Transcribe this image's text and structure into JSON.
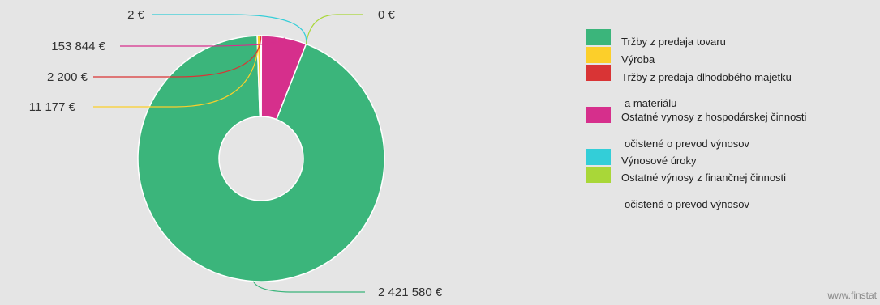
{
  "chart_data": {
    "type": "pie",
    "categories": [
      "Tržby z predaja tovaru",
      "Výroba",
      "Tržby z predaja dlhodobého majetku a materiálu",
      "Ostatné vynosy z hospodárskej činnosti očistené o prevod výnosov",
      "Výnosové úroky",
      "Ostatné výnosy z finančnej činnosti očistené o prevod výnosov"
    ],
    "values": [
      2421580,
      11177,
      2200,
      153844,
      2,
      0
    ],
    "value_labels": [
      "2 421 580 €",
      "11 177 €",
      "2 200 €",
      "153 844 €",
      "2 €",
      "0 €"
    ],
    "colors": [
      "#3bb57b",
      "#fccf2a",
      "#d93435",
      "#d62f8c",
      "#33ced8",
      "#a9d738"
    ],
    "donut": true,
    "legend_placement": "right"
  },
  "legend": {
    "items": [
      {
        "label": "Tržby z predaja tovaru",
        "sub": "",
        "color": "#3bb57b"
      },
      {
        "label": "Výroba",
        "sub": "",
        "color": "#fccf2a"
      },
      {
        "label": "Tržby z predaja dlhodobého majetku",
        "sub": "a materiálu",
        "color": "#d93435"
      },
      {
        "label": "Ostatné vynosy z hospodárskej činnosti",
        "sub": "očistené o prevod výnosov",
        "color": "#d62f8c"
      },
      {
        "label": "Výnosové úroky",
        "sub": "",
        "color": "#33ced8"
      },
      {
        "label": "Ostatné výnosy z finančnej činnosti",
        "sub": "očistené o prevod výnosov",
        "color": "#a9d738"
      }
    ]
  },
  "watermark": "www.finstat"
}
